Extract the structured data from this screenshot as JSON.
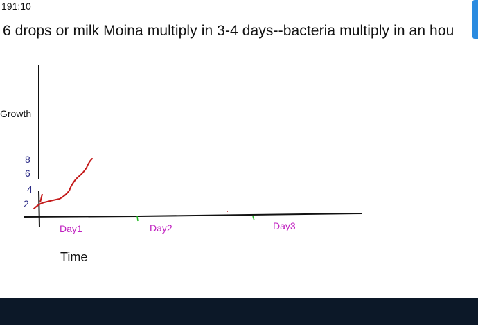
{
  "status": {
    "timestamp": "191:10"
  },
  "headline": "6 drops or milk Moina multiply in 3-4 days--bacteria multiply in an hou",
  "whiteboard": {
    "y_axis_label": "Growth",
    "y_ticks": [
      "8",
      "6",
      "4",
      "2"
    ],
    "x_days": [
      "Day1",
      "Day2",
      "Day3"
    ],
    "x_axis_label": "Time"
  },
  "colors": {
    "ink": "#111111",
    "tick_ink": "#2a2a86",
    "day_ink": "#c020c0",
    "curve": "#c41a1a",
    "marker": "#22bb22",
    "bottom_bar": "#0c1828",
    "scroll_thumb": "#2a8be0"
  }
}
